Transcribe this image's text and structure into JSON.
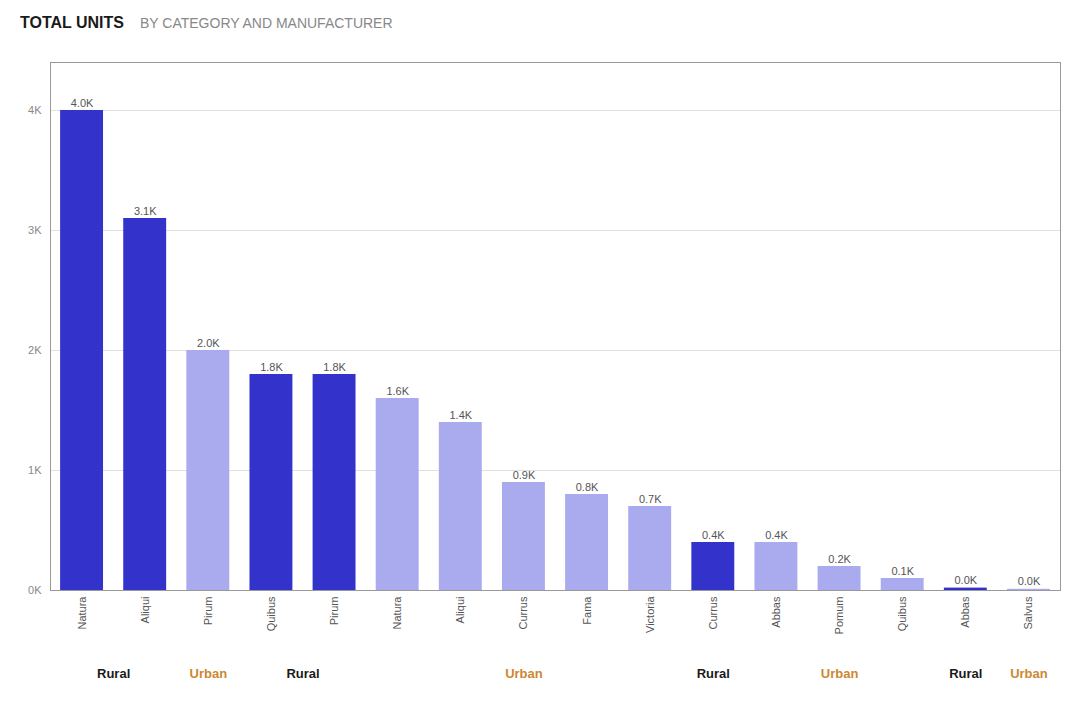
{
  "chart_data": {
    "type": "bar",
    "title": "TOTAL UNITS",
    "subtitle": "BY CATEGORY AND MANUFACTURER",
    "categories": [
      "Natura",
      "Aliqui",
      "Pirum",
      "Quibus",
      "Pirum",
      "Natura",
      "Aliqui",
      "Currus",
      "Fama",
      "Victoria",
      "Currus",
      "Abbas",
      "Pomum",
      "Quibus",
      "Abbas",
      "Salvus"
    ],
    "values": [
      4000,
      3100,
      2000,
      1800,
      1800,
      1600,
      1400,
      900,
      800,
      700,
      400,
      400,
      200,
      100,
      20,
      10
    ],
    "value_labels": [
      "4.0K",
      "3.1K",
      "2.0K",
      "1.8K",
      "1.8K",
      "1.6K",
      "1.4K",
      "0.9K",
      "0.8K",
      "0.7K",
      "0.4K",
      "0.4K",
      "0.2K",
      "0.1K",
      "0.0K",
      "0.0K"
    ],
    "colors": [
      "#3333cc",
      "#3333cc",
      "#aaaaee",
      "#3333cc",
      "#3333cc",
      "#aaaaee",
      "#aaaaee",
      "#aaaaee",
      "#aaaaee",
      "#aaaaee",
      "#3333cc",
      "#aaaaee",
      "#aaaaee",
      "#aaaaee",
      "#3333cc",
      "#aaaaee"
    ],
    "groups": [
      "Rural",
      "Rural",
      "Urban",
      "Rural",
      "Rural",
      "Urban",
      "Urban",
      "Urban",
      "Urban",
      "Urban",
      "Rural",
      "Urban",
      "Urban",
      "Urban",
      "Rural",
      "Urban"
    ],
    "group_colors": {
      "Rural": "#1a1a1a",
      "Urban": "#cc8833"
    },
    "ylim": [
      0,
      4400
    ],
    "yticks": [
      {
        "value": 0,
        "label": "0K"
      },
      {
        "value": 1000,
        "label": "1K"
      },
      {
        "value": 2000,
        "label": "2K"
      },
      {
        "value": 3000,
        "label": "3K"
      },
      {
        "value": 4000,
        "label": "4K"
      }
    ],
    "grid": true,
    "data_labels": true
  }
}
